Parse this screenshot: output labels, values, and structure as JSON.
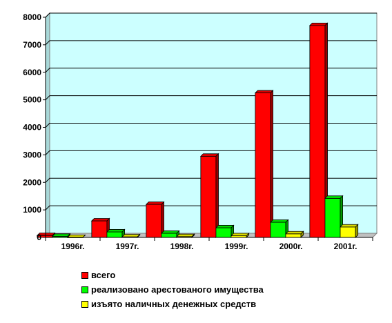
{
  "chart_data": {
    "type": "bar",
    "categories": [
      "1996г.",
      "1997г.",
      "1998г.",
      "1999г.",
      "2000г.",
      "2001г."
    ],
    "series": [
      {
        "name": "всего",
        "color": "#ff0000",
        "values": [
          70,
          600,
          1200,
          2950,
          5250,
          7700
        ]
      },
      {
        "name": "реализовано арестованого имущества",
        "color": "#00ff00",
        "values": [
          40,
          200,
          150,
          350,
          550,
          1420
        ]
      },
      {
        "name": "изъято наличных денежных средств",
        "color": "#ffff00",
        "values": [
          0,
          20,
          30,
          60,
          130,
          380
        ]
      }
    ],
    "yticks": [
      "0",
      "1000",
      "2000",
      "3000",
      "4000",
      "5000",
      "6000",
      "7000",
      "8000"
    ],
    "ylim": [
      0,
      8000
    ],
    "grid": true,
    "legend_position": "bottom",
    "plot_background": "#ccffff"
  }
}
